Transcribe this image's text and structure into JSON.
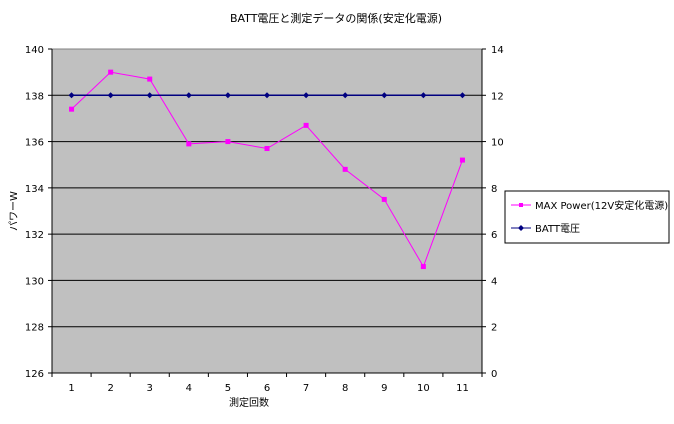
{
  "chart_data": {
    "type": "line",
    "title": "BATT電圧と測定データの関係(安定化電源)",
    "xlabel": "測定回数",
    "ylabel": "パワーW",
    "categories": [
      "1",
      "2",
      "3",
      "4",
      "5",
      "6",
      "7",
      "8",
      "9",
      "10",
      "11"
    ],
    "ylim": [
      126,
      140
    ],
    "y2lim": [
      0,
      14
    ],
    "yticks": [
      "126",
      "128",
      "130",
      "132",
      "134",
      "136",
      "138",
      "140"
    ],
    "y2ticks": [
      "0",
      "2",
      "4",
      "6",
      "8",
      "10",
      "12",
      "14"
    ],
    "grid": true,
    "legend_position": "right",
    "series": [
      {
        "name": "MAX Power(12V安定化電源)",
        "axis": "left",
        "marker": "square",
        "color": "#ff00ff",
        "values": [
          137.4,
          139.0,
          138.7,
          135.9,
          136.0,
          135.7,
          136.7,
          134.8,
          133.5,
          130.6,
          135.2
        ]
      },
      {
        "name": "BATT電圧",
        "axis": "right",
        "marker": "diamond",
        "color": "#000080",
        "values": [
          12,
          12,
          12,
          12,
          12,
          12,
          12,
          12,
          12,
          12,
          12
        ]
      }
    ],
    "plot_background": "#c0c0c0",
    "gridline_color": "#000000"
  }
}
